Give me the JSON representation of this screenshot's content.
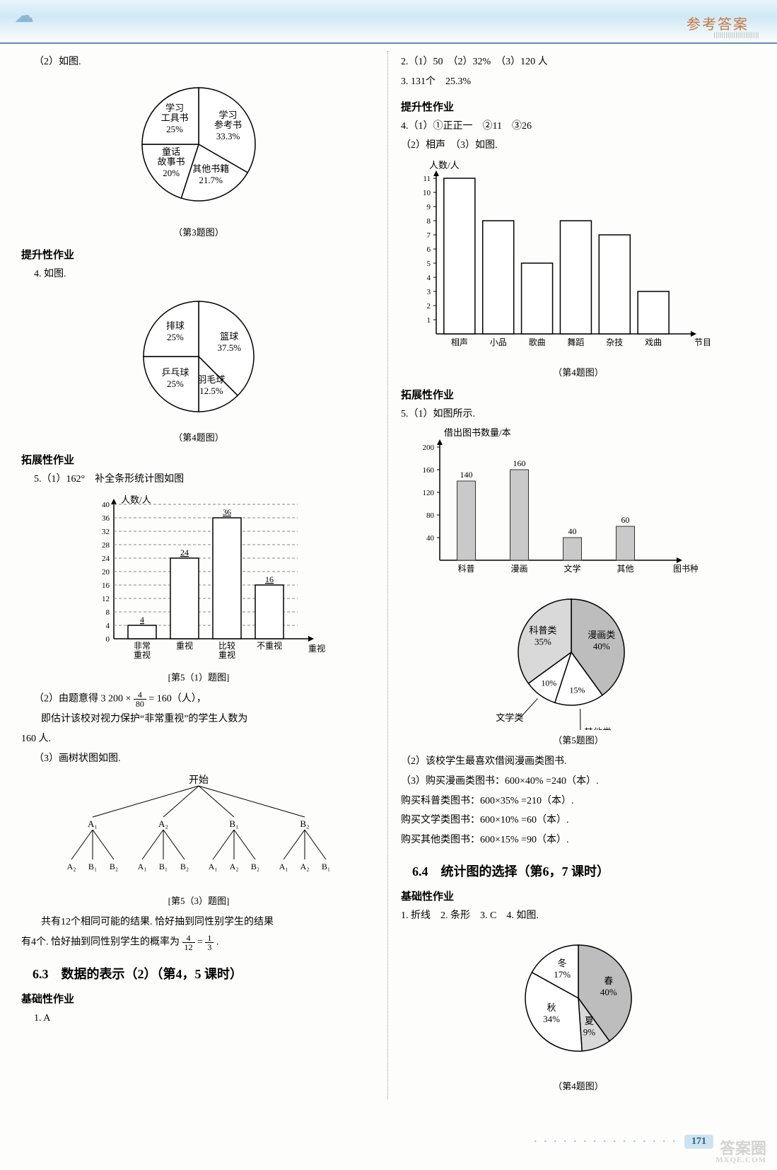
{
  "header": {
    "label": "参考答案"
  },
  "left": {
    "l1": "（2）如图.",
    "pie3": {
      "caption": "（第3题图）",
      "slices": [
        {
          "label": "学习\n参考书",
          "pct": "33.3%",
          "start": -90,
          "end": 30,
          "fill": "#ffffff"
        },
        {
          "label": "其他书籍",
          "pct": "21.7%",
          "start": 30,
          "end": 108,
          "fill": "#ffffff"
        },
        {
          "label": "童话\n故事书",
          "pct": "20%",
          "start": 108,
          "end": 180,
          "fill": "#ffffff"
        },
        {
          "label": "学习\n工具书",
          "pct": "25%",
          "start": 180,
          "end": 270,
          "fill": "#ffffff"
        }
      ]
    },
    "h_up": "提升性作业",
    "l2": "4. 如图.",
    "pie4": {
      "caption": "（第4题图）",
      "slices": [
        {
          "label": "篮球",
          "pct": "37.5%",
          "start": -90,
          "end": 45,
          "fill": "#ffffff"
        },
        {
          "label": "羽毛球",
          "pct": "12.5%",
          "start": 45,
          "end": 90,
          "fill": "#ffffff"
        },
        {
          "label": "乒乓球",
          "pct": "25%",
          "start": 90,
          "end": 180,
          "fill": "#ffffff"
        },
        {
          "label": "排球",
          "pct": "25%",
          "start": 180,
          "end": 270,
          "fill": "#ffffff"
        }
      ]
    },
    "h_ext": "拓展性作业",
    "l3": "5.（1）162°　补全条形统计图如图",
    "bar5": {
      "caption": "[第5（1）题图]",
      "ylabel": "人数/人",
      "xlabel": "重视程度",
      "ymax": 40,
      "ystep": 4,
      "categories": [
        "非常\n重视",
        "重视",
        "比较\n重视",
        "不重视"
      ],
      "values": [
        4,
        24,
        36,
        16
      ],
      "grid_color": "#888",
      "bar_fill": "#ffffff",
      "bar_stroke": "#000"
    },
    "l4a": "（2）由题意得 3 200 ×",
    "l4b": " = 160（人），",
    "frac1": {
      "n": "4",
      "d": "80"
    },
    "l5": "　　即估计该校对视力保护“非常重视”的学生人数为",
    "l6": "160 人.",
    "l7": "（3）画树状图如图.",
    "tree": {
      "caption": "[第5（3）题图]",
      "root": "开始",
      "level1": [
        "A₁",
        "A₂",
        "B₁",
        "B₂"
      ],
      "level2": [
        [
          "A₂",
          "B₁",
          "B₂"
        ],
        [
          "A₁",
          "B₁",
          "B₂"
        ],
        [
          "A₁",
          "A₂",
          "B₂"
        ],
        [
          "A₁",
          "A₂",
          "B₁"
        ]
      ]
    },
    "l8": "　　共有12个相同可能的结果. 恰好抽到同性别学生的结果",
    "l9a": "有4个. 恰好抽到同性别学生的概率为",
    "frac2": {
      "n": "4",
      "d": "12"
    },
    "l9b": " = ",
    "frac3": {
      "n": "1",
      "d": "3"
    },
    "l9c": ".",
    "title63": "6.3　数据的表示（2）（第4，5 课时）",
    "h_base": "基础性作业",
    "l10": "1. A"
  },
  "right": {
    "r1": "2.（1）50　（2）32%　（3）120 人",
    "r2": "3. 131个　25.3%",
    "h_up": "提升性作业",
    "r3": "4.（1）①正正一　②11　③26",
    "r4": "（2）相声　（3）如图.",
    "bar4": {
      "caption": "（第4题图）",
      "ylabel": "人数/人",
      "xlabel": "节目",
      "ymax": 11,
      "ystep": 1,
      "categories": [
        "相声",
        "小品",
        "歌曲",
        "舞蹈",
        "杂技",
        "戏曲"
      ],
      "values": [
        11,
        8,
        5,
        8,
        7,
        3
      ],
      "bar_fill": "#ffffff",
      "bar_stroke": "#000"
    },
    "h_ext": "拓展性作业",
    "r5": "5.（1）如图所示.",
    "bar5b": {
      "caption_top": "借出图书数量/本",
      "xlabel": "图书种类",
      "ymax": 200,
      "ystep": 40,
      "categories": [
        "科普",
        "漫画",
        "文学",
        "其他"
      ],
      "values": [
        140,
        160,
        40,
        60
      ],
      "value_labels": [
        "140",
        "160",
        "40",
        "60"
      ],
      "bar_fill": "#c9c9c9",
      "bar_stroke": "#333"
    },
    "pie5": {
      "caption": "（第5题图）",
      "slices": [
        {
          "label": "漫画类",
          "pct": "40%",
          "start": -90,
          "end": 54,
          "fill": "#bdbdbd"
        },
        {
          "label": "其他类",
          "pct": "15%",
          "start": 54,
          "end": 108,
          "fill": "#ffffff",
          "outside": true
        },
        {
          "label": "文学类",
          "pct": "10%",
          "start": 108,
          "end": 144,
          "fill": "#ffffff",
          "outside": true
        },
        {
          "label": "科普类",
          "pct": "35%",
          "start": 144,
          "end": 270,
          "fill": "#d9d9d9"
        }
      ]
    },
    "r6": "（2）该校学生最喜欢借阅漫画类图书.",
    "r7": "（3）购买漫画类图书：600×40% =240（本）.",
    "r8": "购买科普类图书：600×35% =210（本）.",
    "r9": "购买文学类图书：600×10% =60（本）.",
    "r10": "购买其他类图书：600×15% =90（本）.",
    "title64": "6.4　统计图的选择（第6，7 课时）",
    "h_base": "基础性作业",
    "r11": "1. 折线　2. 条形　3. C　4. 如图.",
    "pie4b": {
      "caption": "（第4题图）",
      "slices": [
        {
          "label": "春",
          "pct": "40%",
          "start": -90,
          "end": 54,
          "fill": "#bdbdbd"
        },
        {
          "label": "夏",
          "pct": "9%",
          "start": 54,
          "end": 86,
          "fill": "#d9d9d9"
        },
        {
          "label": "秋",
          "pct": "34%",
          "start": 86,
          "end": 209,
          "fill": "#ffffff"
        },
        {
          "label": "冬",
          "pct": "17%",
          "start": 209,
          "end": 270,
          "fill": "#ffffff"
        }
      ]
    }
  },
  "footer": {
    "page": "171"
  }
}
